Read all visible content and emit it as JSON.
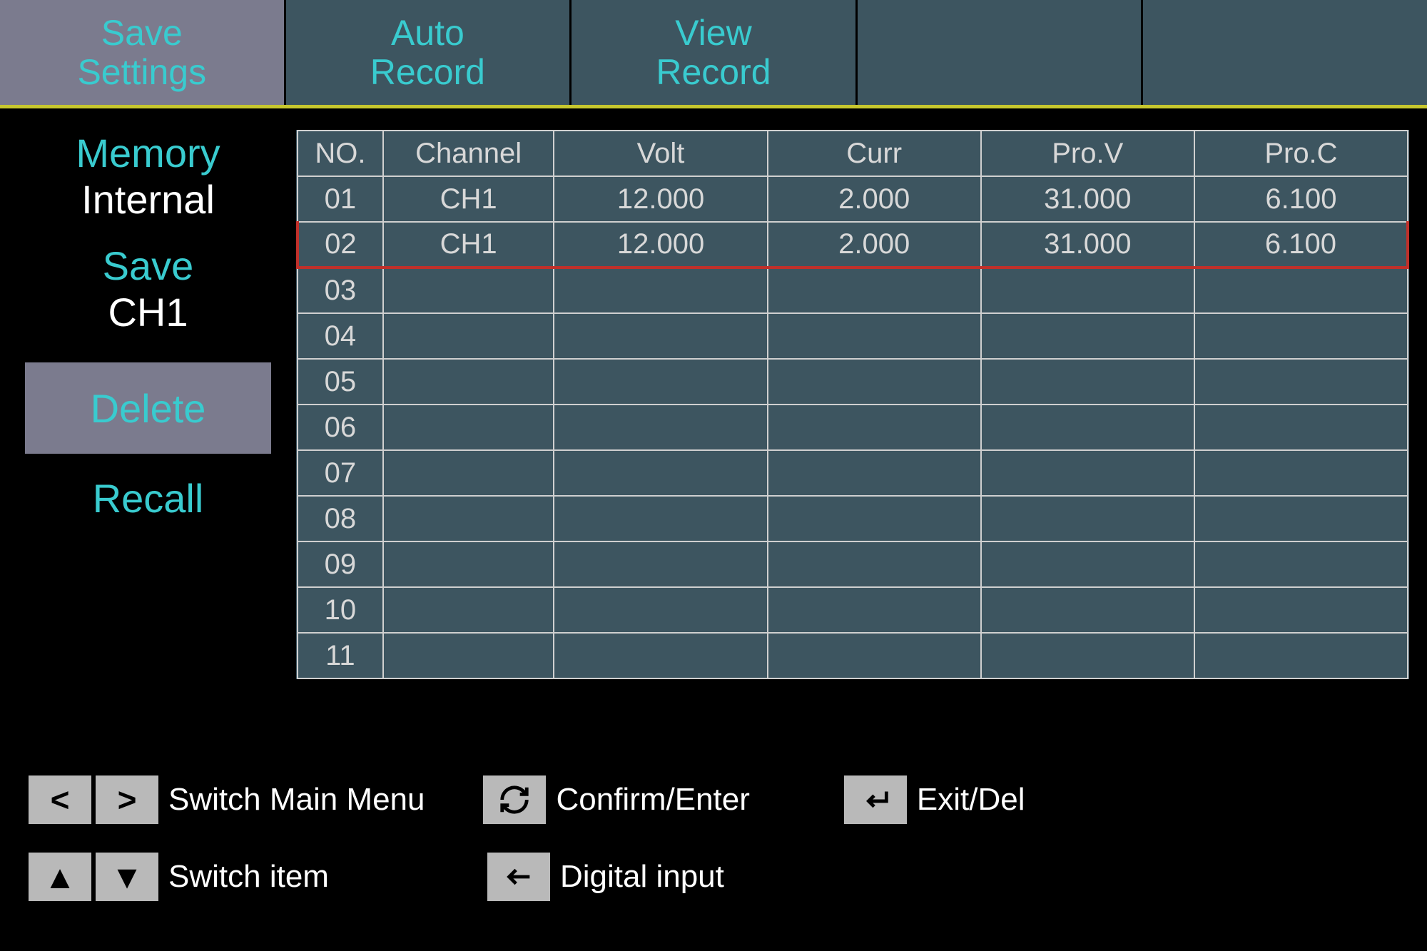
{
  "colors": {
    "background": "#000000",
    "panel": "#3d5560",
    "active_panel": "#7b7b8e",
    "accent_text": "#39cbcf",
    "text": "#ffffff",
    "table_border": "#d0d0d0",
    "tab_underline": "#c7c72e",
    "selected_row_border": "#c0302a",
    "key_bg": "#b9b9b9",
    "key_fg": "#000000"
  },
  "tabs": [
    {
      "label": "Save\nSettings",
      "active": true
    },
    {
      "label": "Auto\nRecord",
      "active": false
    },
    {
      "label": "View\nRecord",
      "active": false
    },
    {
      "label": "",
      "active": false
    },
    {
      "label": "",
      "active": false
    }
  ],
  "sidebar": {
    "memory": {
      "title": "Memory",
      "value": "Internal"
    },
    "save": {
      "title": "Save",
      "value": "CH1"
    },
    "delete": {
      "label": "Delete"
    },
    "recall": {
      "label": "Recall"
    }
  },
  "table": {
    "columns": [
      "NO.",
      "Channel",
      "Volt",
      "Curr",
      "Pro.V",
      "Pro.C"
    ],
    "selected_row_index": 1,
    "rows": [
      {
        "no": "01",
        "channel": "CH1",
        "volt": "12.000",
        "curr": "2.000",
        "prov": "31.000",
        "proc": "6.100"
      },
      {
        "no": "02",
        "channel": "CH1",
        "volt": "12.000",
        "curr": "2.000",
        "prov": "31.000",
        "proc": "6.100"
      },
      {
        "no": "03",
        "channel": "",
        "volt": "",
        "curr": "",
        "prov": "",
        "proc": ""
      },
      {
        "no": "04",
        "channel": "",
        "volt": "",
        "curr": "",
        "prov": "",
        "proc": ""
      },
      {
        "no": "05",
        "channel": "",
        "volt": "",
        "curr": "",
        "prov": "",
        "proc": ""
      },
      {
        "no": "06",
        "channel": "",
        "volt": "",
        "curr": "",
        "prov": "",
        "proc": ""
      },
      {
        "no": "07",
        "channel": "",
        "volt": "",
        "curr": "",
        "prov": "",
        "proc": ""
      },
      {
        "no": "08",
        "channel": "",
        "volt": "",
        "curr": "",
        "prov": "",
        "proc": ""
      },
      {
        "no": "09",
        "channel": "",
        "volt": "",
        "curr": "",
        "prov": "",
        "proc": ""
      },
      {
        "no": "10",
        "channel": "",
        "volt": "",
        "curr": "",
        "prov": "",
        "proc": ""
      },
      {
        "no": "11",
        "channel": "",
        "volt": "",
        "curr": "",
        "prov": "",
        "proc": ""
      }
    ]
  },
  "footer": {
    "switch_menu": "Switch Main Menu",
    "confirm": "Confirm/Enter",
    "exit": "Exit/Del",
    "switch_item": "Switch item",
    "digital_input": "Digital input"
  }
}
